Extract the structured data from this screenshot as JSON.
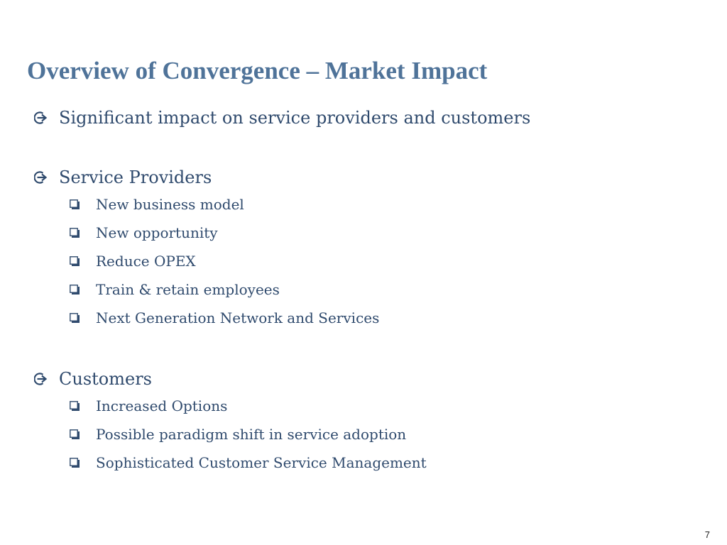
{
  "slide": {
    "title": "Overview of Convergence – Market Impact",
    "page_number": "7"
  },
  "bullets": {
    "intro": "Significant impact on service providers and customers",
    "service_providers": {
      "heading": "Service Providers",
      "items": [
        "New business model",
        "New opportunity",
        "Reduce OPEX",
        "Train & retain employees",
        "Next Generation Network and Services"
      ]
    },
    "customers": {
      "heading": "Customers",
      "items": [
        "Increased Options",
        "Possible paradigm shift in service adoption",
        "Sophisticated Customer Service Management"
      ]
    }
  },
  "icons": {
    "level1": "circled-arrow-icon",
    "level2": "shadow-square-icon"
  },
  "colors": {
    "title": "#4f7399",
    "body_text": "#2f4a6d",
    "background": "#ffffff"
  }
}
